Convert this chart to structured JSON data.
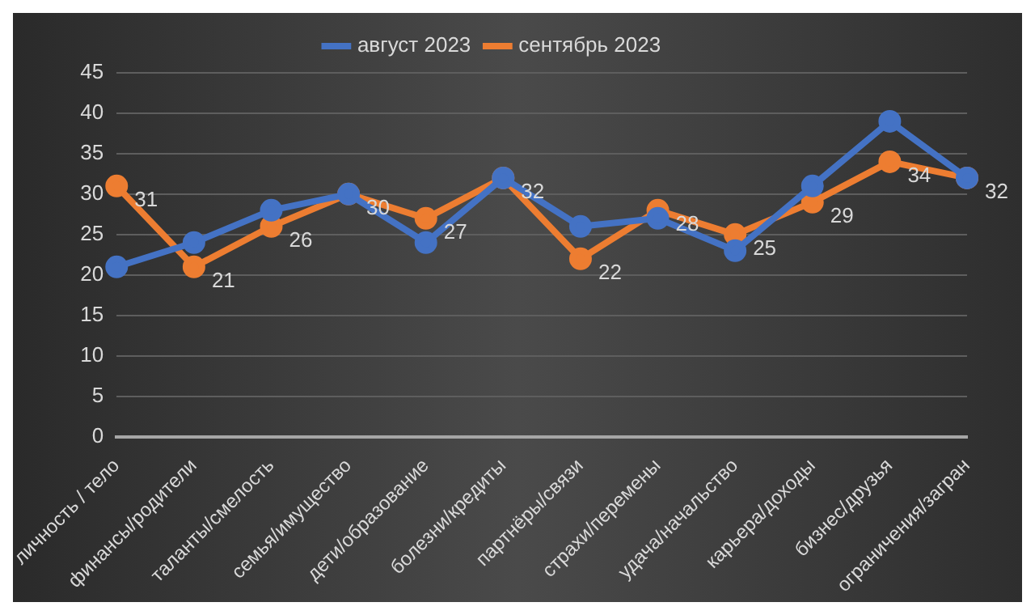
{
  "chart_data": {
    "type": "line",
    "categories": [
      "личность / тело",
      "финансы/родители",
      "таланты/смелость",
      "семья/имущество",
      "дети/образование",
      "болезни/кредиты",
      "партнёры/связи",
      "страхи/перемены",
      "удача/начальство",
      "карьера/доходы",
      "бизнес/друзья",
      "ограничения/загран"
    ],
    "series": [
      {
        "name": "август 2023",
        "color": "#4472c4",
        "values": [
          21,
          24,
          28,
          30,
          24,
          32,
          26,
          27,
          23,
          31,
          39,
          32
        ]
      },
      {
        "name": "сентябрь 2023",
        "color": "#ed7d31",
        "values": [
          31,
          21,
          26,
          30,
          27,
          32,
          22,
          28,
          25,
          29,
          34,
          32
        ],
        "value_labels": [
          "31",
          "21",
          "26",
          "30",
          "27",
          "32",
          "22",
          "28",
          "25",
          "29",
          "34",
          "32"
        ]
      }
    ],
    "ylim": [
      0,
      45
    ],
    "yticks": [
      0,
      5,
      10,
      15,
      20,
      25,
      30,
      35,
      40,
      45
    ],
    "grid": "y",
    "legend": "top",
    "marker": "circle",
    "line_style": "solid"
  }
}
